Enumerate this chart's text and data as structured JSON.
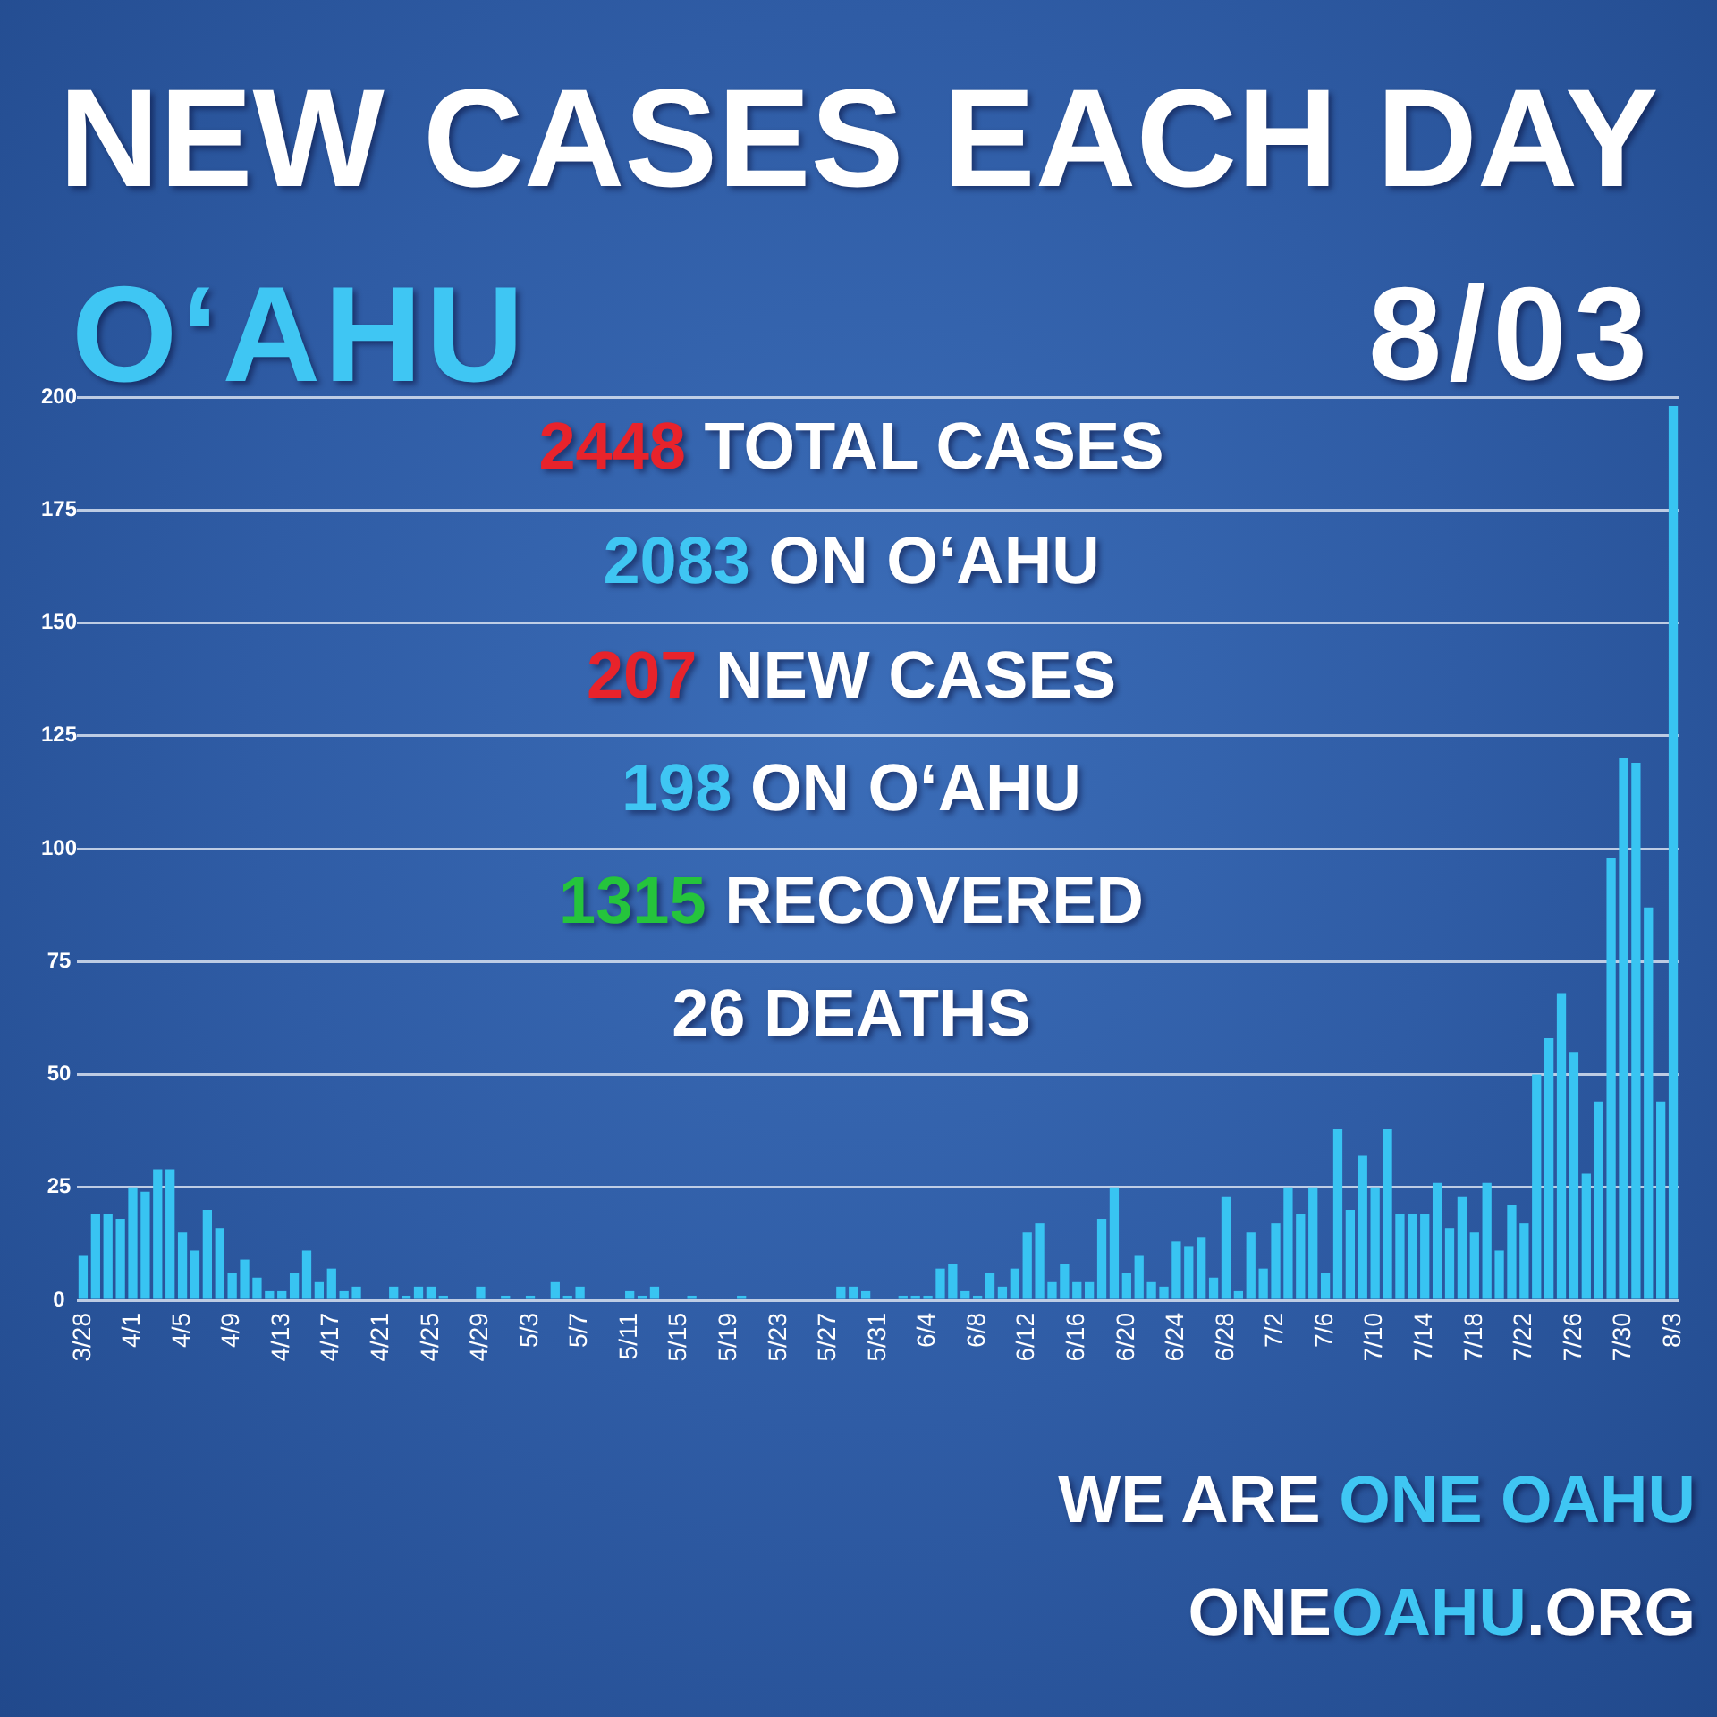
{
  "chart_data": {
    "type": "bar",
    "title": "NEW CASES EACH DAY",
    "subtitle": "O‘AHU",
    "annotations": [
      "8/03",
      "2448 TOTAL CASES",
      "2083 ON O‘AHU",
      "207 NEW CASES",
      "198 ON O‘AHU",
      "1315 RECOVERED",
      "26 DEATHS",
      "WE ARE ONE OAHU",
      "ONEOAHU.ORG"
    ],
    "categories": [
      "3/28",
      null,
      null,
      null,
      "4/1",
      null,
      null,
      null,
      "4/5",
      null,
      null,
      null,
      "4/9",
      null,
      null,
      null,
      "4/13",
      null,
      null,
      null,
      "4/17",
      null,
      null,
      null,
      "4/21",
      null,
      null,
      null,
      "4/25",
      null,
      null,
      null,
      "4/29",
      null,
      null,
      null,
      "5/3",
      null,
      null,
      null,
      "5/7",
      null,
      null,
      null,
      "5/11",
      null,
      null,
      null,
      "5/15",
      null,
      null,
      null,
      "5/19",
      null,
      null,
      null,
      "5/23",
      null,
      null,
      null,
      "5/27",
      null,
      null,
      null,
      "5/31",
      null,
      null,
      null,
      "6/4",
      null,
      null,
      null,
      "6/8",
      null,
      null,
      null,
      "6/12",
      null,
      null,
      null,
      "6/16",
      null,
      null,
      null,
      "6/20",
      null,
      null,
      null,
      "6/24",
      null,
      null,
      null,
      "6/28",
      null,
      null,
      null,
      "7/2",
      null,
      null,
      null,
      "7/6",
      null,
      null,
      null,
      "7/10",
      null,
      null,
      null,
      "7/14",
      null,
      null,
      null,
      "7/18",
      null,
      null,
      null,
      "7/22",
      null,
      null,
      null,
      "7/26",
      null,
      null,
      null,
      "7/30",
      null,
      null,
      null,
      "8/3"
    ],
    "values": [
      10,
      19,
      19,
      18,
      25,
      24,
      29,
      29,
      15,
      11,
      20,
      16,
      6,
      9,
      5,
      2,
      2,
      6,
      11,
      4,
      7,
      2,
      3,
      0,
      0,
      3,
      1,
      3,
      3,
      1,
      0,
      0,
      3,
      0,
      1,
      0,
      1,
      0,
      4,
      1,
      3,
      0,
      0,
      0,
      2,
      1,
      3,
      0,
      0,
      1,
      0,
      0,
      0,
      1,
      0,
      0,
      0,
      0,
      0,
      0,
      0,
      3,
      3,
      2,
      0,
      0,
      1,
      1,
      1,
      7,
      8,
      2,
      1,
      6,
      3,
      7,
      15,
      17,
      4,
      8,
      4,
      4,
      18,
      25,
      6,
      10,
      4,
      3,
      13,
      12,
      14,
      5,
      23,
      2,
      15,
      7,
      17,
      25,
      19,
      25,
      6,
      38,
      20,
      32,
      25,
      38,
      19,
      19,
      19,
      26,
      16,
      23,
      15,
      26,
      11,
      21,
      17,
      50,
      58,
      68,
      55,
      28,
      44,
      98,
      120,
      119,
      87,
      44,
      198
    ],
    "color": "#38c4f2",
    "ylim": [
      0,
      200
    ],
    "yticks": [
      0,
      25,
      50,
      75,
      100,
      125,
      150,
      175,
      200
    ],
    "grid": "y"
  }
}
